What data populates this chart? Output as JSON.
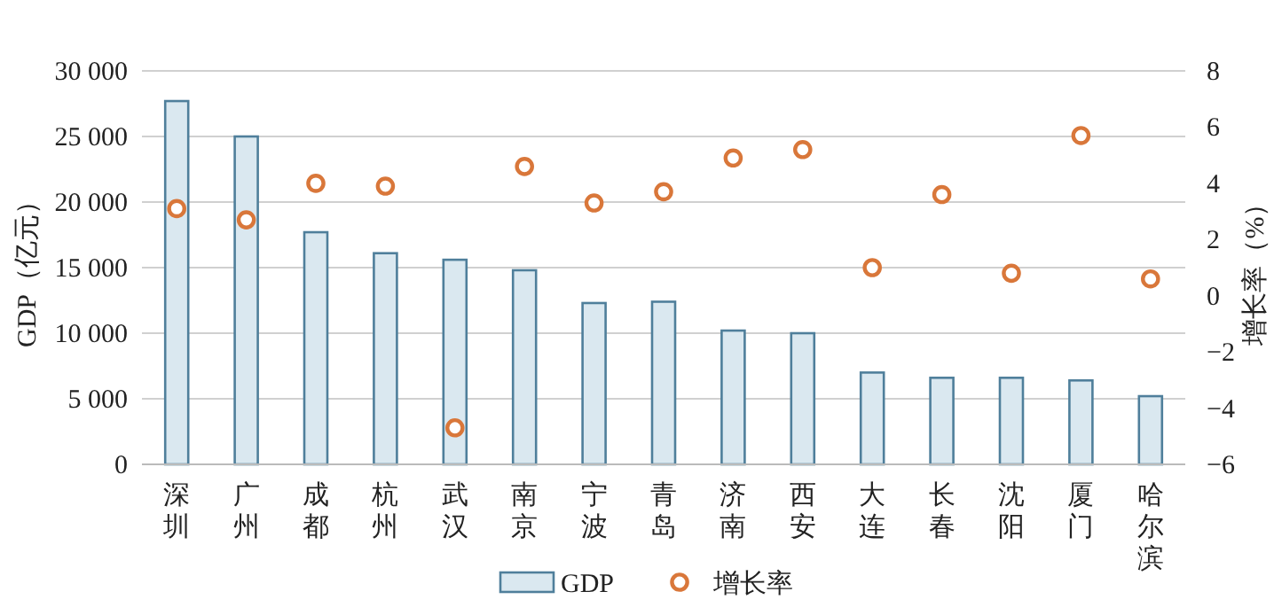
{
  "chart_data": {
    "type": "bar",
    "categories": [
      "深圳",
      "广州",
      "成都",
      "杭州",
      "武汉",
      "南京",
      "宁波",
      "青岛",
      "济南",
      "西安",
      "大连",
      "长春",
      "沈阳",
      "厦门",
      "哈尔滨"
    ],
    "series": [
      {
        "name": "GDP",
        "color": "#dae8f0",
        "values": [
          27700,
          25000,
          17700,
          16100,
          15600,
          14800,
          12300,
          12400,
          10200,
          10000,
          7000,
          6600,
          6600,
          6400,
          5200
        ]
      },
      {
        "name": "增长率",
        "type": "scatter",
        "axis": "y2",
        "color": "#d9773a",
        "marker": "circle",
        "values": [
          3.1,
          2.7,
          4.0,
          3.9,
          -4.7,
          4.6,
          3.3,
          3.7,
          4.9,
          5.2,
          1.0,
          3.6,
          0.8,
          5.7,
          0.6
        ]
      }
    ],
    "ylabel": "GDP（亿元）",
    "y2label": "增长率（%）",
    "ylim": [
      0,
      30000
    ],
    "yticks": [
      0,
      {
        "value": 5000,
        "label": "5 000"
      },
      {
        "value": 10000,
        "label": "10 000"
      },
      {
        "value": 15000,
        "label": "15 000"
      },
      {
        "value": 20000,
        "label": "20 000"
      },
      {
        "value": 25000,
        "label": "25 000"
      },
      {
        "value": 30000,
        "label": "30 000"
      }
    ],
    "y2lim": [
      -6,
      8
    ],
    "y2ticks": [
      {
        "value": -6,
        "label": "−6"
      },
      {
        "value": -4,
        "label": "−4"
      },
      {
        "value": -2,
        "label": "−2"
      },
      0,
      2,
      4,
      6,
      8
    ],
    "grid": "y",
    "legend": "bottom"
  }
}
